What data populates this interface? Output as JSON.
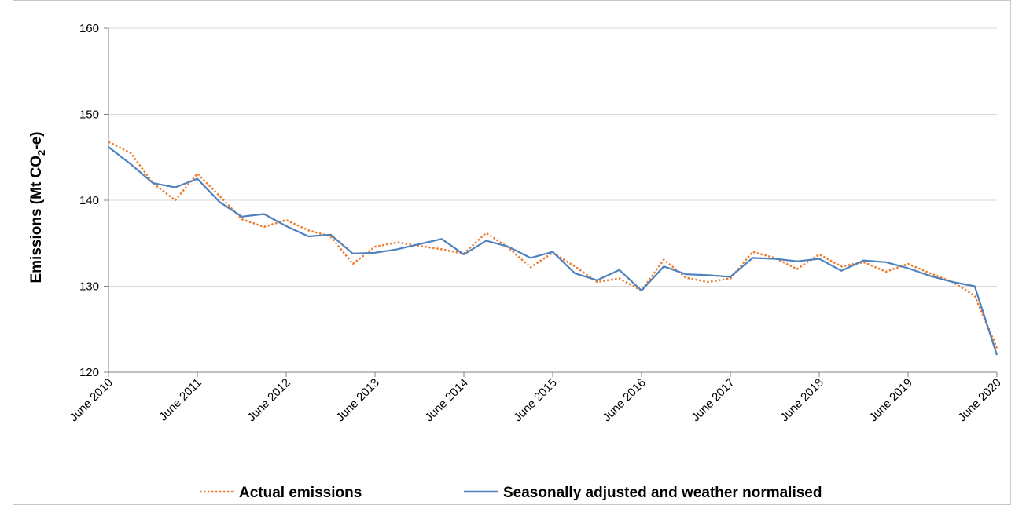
{
  "chart_data": {
    "type": "line",
    "ylabel": {
      "prefix": "Emissions (Mt CO",
      "subscript": "2",
      "suffix": "-e)"
    },
    "ylim": [
      120,
      160
    ],
    "yticks": [
      "120",
      "130",
      "140",
      "150",
      "160"
    ],
    "grid": "horizontal",
    "legend_position": "bottom",
    "x": [
      "June 2010",
      "Sep 2010",
      "Dec 2010",
      "Mar 2011",
      "June 2011",
      "Sep 2011",
      "Dec 2011",
      "Mar 2012",
      "June 2012",
      "Sep 2012",
      "Dec 2012",
      "Mar 2013",
      "June 2013",
      "Sep 2013",
      "Dec 2013",
      "Mar 2014",
      "June 2014",
      "Sep 2014",
      "Dec 2014",
      "Mar 2015",
      "June 2015",
      "Sep 2015",
      "Dec 2015",
      "Mar 2016",
      "June 2016",
      "Sep 2016",
      "Dec 2016",
      "Mar 2017",
      "June 2017",
      "Sep 2017",
      "Dec 2017",
      "Mar 2018",
      "June 2018",
      "Sep 2018",
      "Dec 2018",
      "Mar 2019",
      "June 2019",
      "Sep 2019",
      "Dec 2019",
      "Mar 2020",
      "June 2020"
    ],
    "xtick_labels": [
      "June 2010",
      "June 2011",
      "June 2012",
      "June 2013",
      "June 2014",
      "June 2015",
      "June 2016",
      "June 2017",
      "June 2018",
      "June 2019",
      "June 2020"
    ],
    "series": [
      {
        "name": "Actual emissions",
        "color": "#ed7d31",
        "style": "dotted",
        "values": [
          146.8,
          145.5,
          142.0,
          140.0,
          143.1,
          140.5,
          137.8,
          136.9,
          137.7,
          136.5,
          135.8,
          132.6,
          134.6,
          135.1,
          134.7,
          134.3,
          133.8,
          136.2,
          134.5,
          132.2,
          133.9,
          132.3,
          130.5,
          130.9,
          129.5,
          133.1,
          131.0,
          130.5,
          130.9,
          134.0,
          133.3,
          132.0,
          133.7,
          132.3,
          132.8,
          131.7,
          132.6,
          131.5,
          130.5,
          128.9,
          122.8
        ]
      },
      {
        "name": "Seasonally adjusted and weather normalised",
        "color": "#4e81bd",
        "style": "solid",
        "values": [
          146.2,
          144.2,
          142.0,
          141.5,
          142.5,
          139.8,
          138.1,
          138.4,
          137.0,
          135.8,
          136.0,
          133.8,
          133.9,
          134.3,
          134.9,
          135.5,
          133.7,
          135.3,
          134.6,
          133.3,
          134.0,
          131.5,
          130.7,
          131.9,
          129.5,
          132.3,
          131.4,
          131.3,
          131.1,
          133.3,
          133.2,
          132.9,
          133.2,
          131.8,
          133.0,
          132.8,
          132.1,
          131.2,
          130.5,
          130.0,
          122.0
        ]
      }
    ]
  }
}
